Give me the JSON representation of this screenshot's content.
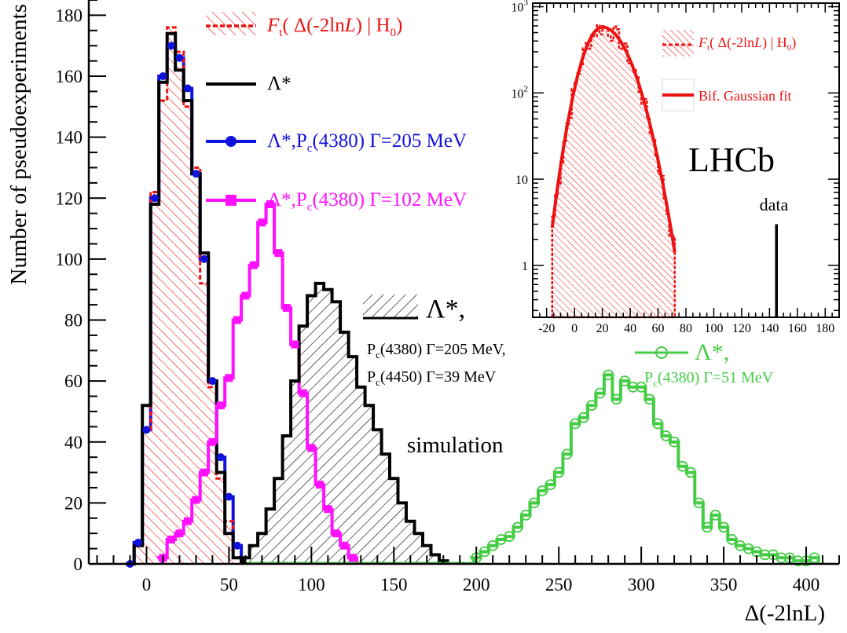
{
  "chart_data": [
    {
      "type": "line",
      "xlabel": "Δ(-2lnL)",
      "ylabel": "Number of pseudoexperiments",
      "xlim": [
        -35,
        420
      ],
      "ylim": [
        0,
        185
      ],
      "xticks": [
        "0",
        "50",
        "100",
        "150",
        "200",
        "250",
        "300",
        "350",
        "400"
      ],
      "yticks": [
        "0",
        "20",
        "40",
        "60",
        "80",
        "100",
        "120",
        "140",
        "160",
        "180"
      ],
      "texts": {
        "legend_ft_prefix": "F",
        "legend_ft_sub": "t",
        "legend_ft_open": "( Δ(-2ln",
        "legend_ft_L": "L",
        "legend_ft_close": ") | H",
        "legend_ft_zero": "0",
        "legend_ft_end": ")",
        "legend_lambda": "Λ*",
        "legend_blue_a": "Λ*,P",
        "legend_blue_sub": "c",
        "legend_blue_b": "(4380) Γ=205 MeV",
        "legend_mag_a": "Λ*,P",
        "legend_mag_sub": "c",
        "legend_mag_b": "(4380) Γ=102 MeV",
        "hatch_lambda": "Λ*,",
        "hatch_l2a": "P",
        "hatch_l2sub": "c",
        "hatch_l2b": "(4380) Γ=205 MeV,",
        "hatch_l3a": "P",
        "hatch_l3sub": "c",
        "hatch_l3b": "(4450) Γ=39 MeV",
        "green_lambda": "Λ*,",
        "green_l2a": "P",
        "green_l2sub": "c",
        "green_l2b": "(4380) Γ=51 MeV",
        "simulation": "simulation"
      },
      "series": [
        {
          "name": "F_t( Δ(-2lnL) | H0)",
          "color": "#ee1111",
          "binwidth": 5,
          "x": [
            -10,
            -5,
            0,
            5,
            10,
            15,
            20,
            25,
            30,
            35,
            40,
            45,
            50,
            55
          ],
          "values": [
            0,
            6,
            44,
            122,
            152,
            176,
            168,
            150,
            130,
            92,
            58,
            28,
            14,
            2
          ]
        },
        {
          "name": "Λ*",
          "color": "#000000",
          "binwidth": 5,
          "x": [
            -10,
            -5,
            0,
            5,
            10,
            15,
            20,
            25,
            30,
            35,
            40,
            45,
            50,
            55
          ],
          "values": [
            0,
            6,
            52,
            118,
            158,
            174,
            162,
            152,
            128,
            102,
            60,
            30,
            10,
            2
          ]
        },
        {
          "name": "Λ*,Pc(4380) Γ=205 MeV",
          "color": "#1111dd",
          "binwidth": 5,
          "x": [
            -10,
            -5,
            0,
            5,
            10,
            15,
            20,
            25,
            30,
            35,
            40,
            45,
            50,
            55
          ],
          "values": [
            0,
            7,
            44,
            120,
            160,
            170,
            166,
            156,
            128,
            100,
            60,
            35,
            22,
            6
          ]
        },
        {
          "name": "Λ*,Pc(4380) Γ=102 MeV",
          "color": "#ff11ff",
          "binwidth": 5,
          "x": [
            10,
            15,
            20,
            25,
            30,
            35,
            40,
            45,
            50,
            55,
            60,
            65,
            70,
            75,
            80,
            85,
            90,
            95,
            100,
            105,
            110,
            115,
            120,
            125
          ],
          "values": [
            2,
            8,
            10,
            14,
            21,
            30,
            40,
            52,
            61,
            80,
            88,
            98,
            112,
            118,
            102,
            84,
            72,
            56,
            38,
            26,
            18,
            10,
            6,
            2
          ]
        },
        {
          "name": "Λ*, Pc(4380) Γ=205 MeV, Pc(4450) Γ=39 MeV",
          "color": "#000000",
          "binwidth": 5,
          "x": [
            60,
            65,
            70,
            75,
            80,
            85,
            90,
            95,
            100,
            105,
            110,
            115,
            120,
            125,
            130,
            135,
            140,
            145,
            150,
            155,
            160,
            165,
            170,
            175,
            180
          ],
          "values": [
            2,
            6,
            10,
            18,
            28,
            42,
            60,
            78,
            88,
            92,
            90,
            86,
            76,
            68,
            58,
            52,
            44,
            36,
            28,
            20,
            14,
            10,
            6,
            3,
            1
          ]
        },
        {
          "name": "Λ*, Pc(4380) Γ=51 MeV",
          "color": "#44cc44",
          "binwidth": 5,
          "x": [
            200,
            205,
            210,
            215,
            220,
            225,
            230,
            235,
            240,
            245,
            250,
            255,
            260,
            265,
            270,
            275,
            280,
            285,
            290,
            295,
            300,
            305,
            310,
            315,
            320,
            325,
            330,
            335,
            340,
            345,
            350,
            355,
            360,
            365,
            370,
            375,
            380,
            385,
            390,
            395,
            400,
            405
          ],
          "values": [
            2,
            4,
            6,
            8,
            9,
            12,
            16,
            20,
            24,
            26,
            30,
            36,
            46,
            48,
            52,
            56,
            62,
            54,
            60,
            58,
            58,
            54,
            46,
            42,
            40,
            32,
            30,
            20,
            12,
            16,
            12,
            8,
            6,
            5,
            4,
            3,
            3,
            2,
            2,
            1,
            1,
            2
          ]
        }
      ]
    },
    {
      "type": "bar",
      "xlim": [
        -30,
        190
      ],
      "yscale": "log",
      "ylim": [
        0.25,
        1100
      ],
      "xticks": [
        "-20",
        "0",
        "20",
        "40",
        "60",
        "80",
        "100",
        "120",
        "140",
        "160",
        "180"
      ],
      "yticks": [
        {
          "v": 1,
          "base": "1",
          "exp": ""
        },
        {
          "v": 10,
          "base": "10",
          "exp": ""
        },
        {
          "v": 100,
          "base": "10",
          "exp": "2"
        },
        {
          "v": 1000,
          "base": "10",
          "exp": "3"
        }
      ],
      "texts": {
        "legend_ft_prefix": "F",
        "legend_ft_sub": "t",
        "legend_ft_open": "( Δ(-2ln",
        "legend_ft_L": "L",
        "legend_ft_close": ") | H",
        "legend_ft_zero": "0",
        "legend_ft_end": ")",
        "legend_fit": "Bif. Gaussian fit",
        "lhcb": "LHCb",
        "data_label": "data"
      },
      "data_x": 145,
      "data_top": 3,
      "hist_color": "#ee1111",
      "fit_color": "#ee1111",
      "fit": {
        "mu": 20,
        "sigmaL": 11,
        "sigmaR": 15,
        "amp": 580,
        "xmin": -16,
        "xmax": 72
      },
      "bin_edges_range": [
        -16,
        72
      ],
      "binwidth": 2
    }
  ]
}
